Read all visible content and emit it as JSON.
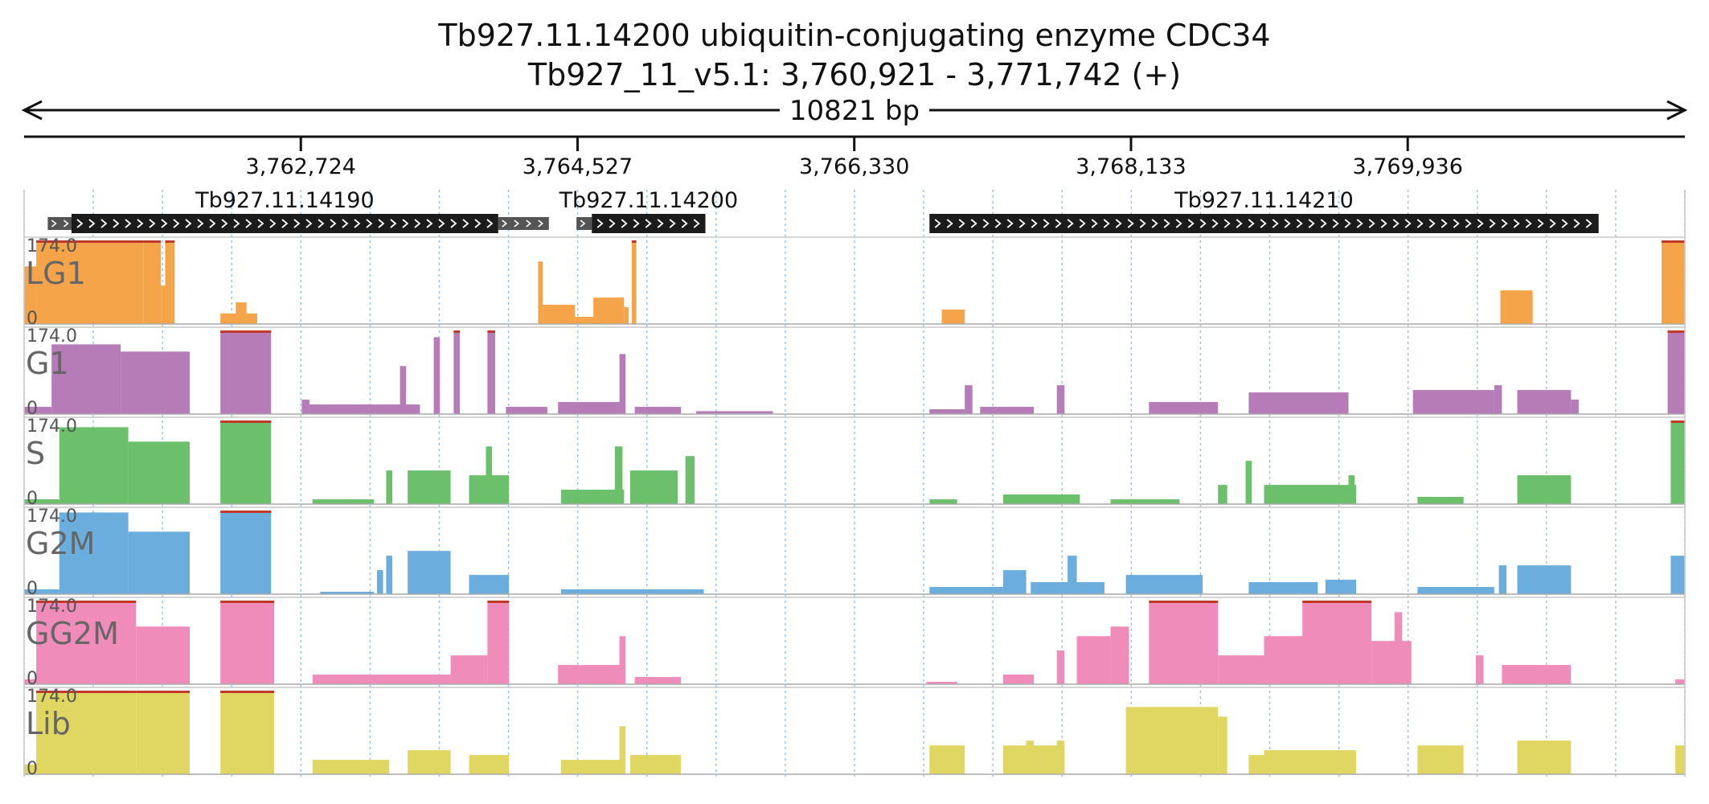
{
  "title": "Tb927.11.14200  ubiquitin-conjugating enzyme CDC34",
  "subtitle": "Tb927_11_v5.1: 3,760,921 - 3,771,742 (+)",
  "chart_data": {
    "type": "area",
    "region": {
      "chromosome": "Tb927_11_v5.1",
      "start": 3760921,
      "end": 3771742,
      "strand": "+",
      "length_label": "10821 bp"
    },
    "ruler_ticks": [
      {
        "pos": 3762724,
        "label": "3,762,724"
      },
      {
        "pos": 3764527,
        "label": "3,764,527"
      },
      {
        "pos": 3766330,
        "label": "3,766,330"
      },
      {
        "pos": 3768133,
        "label": "3,768,133"
      },
      {
        "pos": 3769936,
        "label": "3,769,936"
      }
    ],
    "genes": [
      {
        "name": "Tb927.11.14190",
        "cds": [
          3761230,
          3764010
        ],
        "utr": [
          [
            3761075,
            3761230
          ],
          [
            3764010,
            3764340
          ]
        ]
      },
      {
        "name": "Tb927.11.14200",
        "cds": [
          3764620,
          3765360
        ],
        "utr": [
          [
            3764520,
            3764620
          ]
        ]
      },
      {
        "name": "Tb927.11.14210",
        "cds": [
          3766820,
          3771180
        ],
        "utr": []
      }
    ],
    "ylim": [
      0,
      174.0
    ],
    "y_tick_labels": [
      "174.0",
      "0"
    ],
    "series": [
      {
        "name": "LG1",
        "color": "#F6A44A",
        "segments": [
          [
            3760921,
            3761000,
            120
          ],
          [
            3761000,
            3761230,
            174
          ],
          [
            3761230,
            3761700,
            174
          ],
          [
            3761700,
            3761812,
            174
          ],
          [
            3761812,
            3761840,
            80
          ],
          [
            3761840,
            3761880,
            174
          ],
          [
            3761880,
            3761901,
            174
          ],
          [
            3762200,
            3762440,
            22
          ],
          [
            3762300,
            3762370,
            45
          ],
          [
            3764270,
            3764300,
            130
          ],
          [
            3764300,
            3764510,
            40
          ],
          [
            3764510,
            3764630,
            15
          ],
          [
            3764630,
            3764830,
            55
          ],
          [
            3764830,
            3764860,
            35
          ],
          [
            3764880,
            3764910,
            174
          ],
          [
            3766900,
            3767050,
            30
          ],
          [
            3770540,
            3770750,
            70
          ],
          [
            3771590,
            3771742,
            174
          ]
        ]
      },
      {
        "name": "G1",
        "color": "#B57CB7",
        "segments": [
          [
            3760921,
            3761100,
            15
          ],
          [
            3761100,
            3761550,
            145
          ],
          [
            3761550,
            3762000,
            130
          ],
          [
            3762200,
            3762530,
            174
          ],
          [
            3762730,
            3762780,
            30
          ],
          [
            3762780,
            3763500,
            20
          ],
          [
            3763370,
            3763410,
            100
          ],
          [
            3763590,
            3763630,
            160
          ],
          [
            3763720,
            3763760,
            174
          ],
          [
            3763940,
            3763990,
            174
          ],
          [
            3764060,
            3764330,
            15
          ],
          [
            3764400,
            3764830,
            25
          ],
          [
            3764800,
            3764840,
            125
          ],
          [
            3764900,
            3765200,
            15
          ],
          [
            3765300,
            3765800,
            6
          ],
          [
            3766820,
            3767050,
            10
          ],
          [
            3767050,
            3767100,
            60
          ],
          [
            3767150,
            3767500,
            15
          ],
          [
            3767650,
            3767700,
            60
          ],
          [
            3768250,
            3768700,
            25
          ],
          [
            3768900,
            3769550,
            45
          ],
          [
            3769970,
            3770500,
            50
          ],
          [
            3770500,
            3770550,
            60
          ],
          [
            3770650,
            3771000,
            50
          ],
          [
            3771000,
            3771050,
            30
          ],
          [
            3771630,
            3771742,
            174
          ]
        ]
      },
      {
        "name": "S",
        "color": "#6CC06C",
        "segments": [
          [
            3760921,
            3761150,
            10
          ],
          [
            3761150,
            3761600,
            160
          ],
          [
            3761600,
            3762000,
            130
          ],
          [
            3762200,
            3762530,
            174
          ],
          [
            3762800,
            3763200,
            10
          ],
          [
            3763280,
            3763320,
            70
          ],
          [
            3763420,
            3763700,
            70
          ],
          [
            3763820,
            3764080,
            60
          ],
          [
            3763930,
            3763970,
            120
          ],
          [
            3764420,
            3764830,
            30
          ],
          [
            3764770,
            3764820,
            120
          ],
          [
            3764870,
            3765180,
            70
          ],
          [
            3765230,
            3765290,
            100
          ],
          [
            3766820,
            3767000,
            10
          ],
          [
            3767300,
            3767800,
            20
          ],
          [
            3768000,
            3768450,
            10
          ],
          [
            3768700,
            3768760,
            40
          ],
          [
            3768880,
            3768920,
            90
          ],
          [
            3769000,
            3769600,
            40
          ],
          [
            3769550,
            3769590,
            60
          ],
          [
            3770000,
            3770300,
            15
          ],
          [
            3770650,
            3771000,
            60
          ],
          [
            3771650,
            3771742,
            174
          ]
        ]
      },
      {
        "name": "G2M",
        "color": "#6BAEDE",
        "segments": [
          [
            3760921,
            3761150,
            10
          ],
          [
            3761150,
            3761600,
            170
          ],
          [
            3761600,
            3762000,
            130
          ],
          [
            3762200,
            3762530,
            174
          ],
          [
            3762850,
            3763200,
            5
          ],
          [
            3763220,
            3763260,
            50
          ],
          [
            3763280,
            3763320,
            80
          ],
          [
            3763420,
            3763700,
            90
          ],
          [
            3763820,
            3764080,
            40
          ],
          [
            3764420,
            3765350,
            10
          ],
          [
            3766820,
            3767300,
            15
          ],
          [
            3767300,
            3767450,
            50
          ],
          [
            3767480,
            3767960,
            25
          ],
          [
            3767720,
            3767780,
            80
          ],
          [
            3768100,
            3768600,
            40
          ],
          [
            3768900,
            3769350,
            25
          ],
          [
            3769400,
            3769600,
            30
          ],
          [
            3770000,
            3770500,
            15
          ],
          [
            3770530,
            3770580,
            60
          ],
          [
            3770650,
            3771000,
            60
          ],
          [
            3771650,
            3771742,
            80
          ]
        ]
      },
      {
        "name": "GG2M",
        "color": "#F08CB9",
        "segments": [
          [
            3760921,
            3761000,
            10
          ],
          [
            3761000,
            3761650,
            174
          ],
          [
            3761650,
            3762000,
            120
          ],
          [
            3762200,
            3762550,
            174
          ],
          [
            3762800,
            3763700,
            20
          ],
          [
            3763700,
            3763940,
            60
          ],
          [
            3763940,
            3764080,
            174
          ],
          [
            3764400,
            3764830,
            40
          ],
          [
            3764800,
            3764840,
            100
          ],
          [
            3764900,
            3765200,
            15
          ],
          [
            3766800,
            3767000,
            5
          ],
          [
            3767300,
            3767500,
            20
          ],
          [
            3767650,
            3767700,
            70
          ],
          [
            3767780,
            3768000,
            100
          ],
          [
            3768000,
            3768120,
            120
          ],
          [
            3768250,
            3768700,
            174
          ],
          [
            3768700,
            3769000,
            60
          ],
          [
            3769000,
            3769300,
            100
          ],
          [
            3769250,
            3769700,
            174
          ],
          [
            3769700,
            3769960,
            90
          ],
          [
            3769850,
            3769900,
            150
          ],
          [
            3770380,
            3770430,
            60
          ],
          [
            3770550,
            3771000,
            40
          ],
          [
            3771680,
            3771742,
            10
          ]
        ]
      },
      {
        "name": "Lib",
        "color": "#E0D662",
        "segments": [
          [
            3760921,
            3761000,
            20
          ],
          [
            3761000,
            3761650,
            174
          ],
          [
            3761650,
            3762000,
            174
          ],
          [
            3762200,
            3762550,
            174
          ],
          [
            3762800,
            3763300,
            30
          ],
          [
            3763420,
            3763700,
            50
          ],
          [
            3763820,
            3764080,
            40
          ],
          [
            3764420,
            3764830,
            30
          ],
          [
            3764800,
            3764840,
            100
          ],
          [
            3764870,
            3765200,
            40
          ],
          [
            3766820,
            3767050,
            60
          ],
          [
            3767300,
            3767700,
            60
          ],
          [
            3767450,
            3767500,
            70
          ],
          [
            3767650,
            3767700,
            70
          ],
          [
            3768100,
            3768700,
            140
          ],
          [
            3768700,
            3768760,
            120
          ],
          [
            3768900,
            3769000,
            40
          ],
          [
            3769000,
            3769600,
            50
          ],
          [
            3770000,
            3770300,
            60
          ],
          [
            3770650,
            3771000,
            70
          ],
          [
            3771680,
            3771742,
            60
          ]
        ]
      }
    ]
  }
}
